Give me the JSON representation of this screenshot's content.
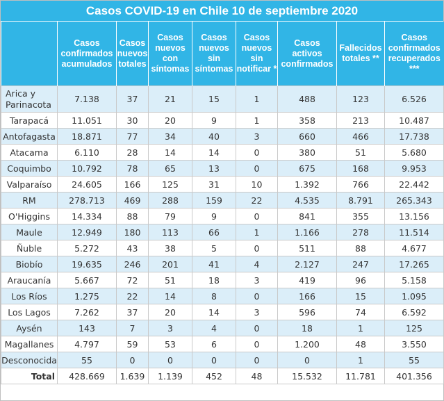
{
  "title": "Casos COVID-19 en Chile 10 de septiembre 2020",
  "columns": [
    "Casos confirmados acumulados",
    "Casos nuevos totales",
    "Casos nuevos con síntomas",
    "Casos nuevos sin síntomas",
    "Casos nuevos sin notificar *",
    "Casos activos confirmados",
    "Fallecidos totales **",
    "Casos confirmados recuperados ***"
  ],
  "rows": [
    {
      "region": "Arica y Parinacota",
      "values": [
        "7.138",
        "37",
        "21",
        "15",
        "1",
        "488",
        "123",
        "6.526"
      ]
    },
    {
      "region": "Tarapacá",
      "values": [
        "11.051",
        "30",
        "20",
        "9",
        "1",
        "358",
        "213",
        "10.487"
      ]
    },
    {
      "region": "Antofagasta",
      "values": [
        "18.871",
        "77",
        "34",
        "40",
        "3",
        "660",
        "466",
        "17.738"
      ]
    },
    {
      "region": "Atacama",
      "values": [
        "6.110",
        "28",
        "14",
        "14",
        "0",
        "380",
        "51",
        "5.680"
      ]
    },
    {
      "region": "Coquimbo",
      "values": [
        "10.792",
        "78",
        "65",
        "13",
        "0",
        "675",
        "168",
        "9.953"
      ]
    },
    {
      "region": "Valparaíso",
      "values": [
        "24.605",
        "166",
        "125",
        "31",
        "10",
        "1.392",
        "766",
        "22.442"
      ]
    },
    {
      "region": "RM",
      "values": [
        "278.713",
        "469",
        "288",
        "159",
        "22",
        "4.535",
        "8.791",
        "265.343"
      ]
    },
    {
      "region": "O'Higgins",
      "values": [
        "14.334",
        "88",
        "79",
        "9",
        "0",
        "841",
        "355",
        "13.156"
      ]
    },
    {
      "region": "Maule",
      "values": [
        "12.949",
        "180",
        "113",
        "66",
        "1",
        "1.166",
        "278",
        "11.514"
      ]
    },
    {
      "region": "Ñuble",
      "values": [
        "5.272",
        "43",
        "38",
        "5",
        "0",
        "511",
        "88",
        "4.677"
      ]
    },
    {
      "region": "Biobío",
      "values": [
        "19.635",
        "246",
        "201",
        "41",
        "4",
        "2.127",
        "247",
        "17.265"
      ]
    },
    {
      "region": "Araucanía",
      "values": [
        "5.667",
        "72",
        "51",
        "18",
        "3",
        "419",
        "96",
        "5.158"
      ]
    },
    {
      "region": "Los Ríos",
      "values": [
        "1.275",
        "22",
        "14",
        "8",
        "0",
        "166",
        "15",
        "1.095"
      ]
    },
    {
      "region": "Los Lagos",
      "values": [
        "7.262",
        "37",
        "20",
        "14",
        "3",
        "596",
        "74",
        "6.592"
      ]
    },
    {
      "region": "Aysén",
      "values": [
        "143",
        "7",
        "3",
        "4",
        "0",
        "18",
        "1",
        "125"
      ]
    },
    {
      "region": "Magallanes",
      "values": [
        "4.797",
        "59",
        "53",
        "6",
        "0",
        "1.200",
        "48",
        "3.550"
      ]
    },
    {
      "region": "Desconocida",
      "values": [
        "55",
        "0",
        "0",
        "0",
        "0",
        "0",
        "1",
        "55"
      ]
    }
  ],
  "total": {
    "label": "Total",
    "values": [
      "428.669",
      "1.639",
      "1.139",
      "452",
      "48",
      "15.532",
      "11.781",
      "401.356"
    ]
  },
  "colors": {
    "header_bg": "#31b5e6",
    "row_stripe": "#dbeef9",
    "header_text": "#ffffff"
  }
}
